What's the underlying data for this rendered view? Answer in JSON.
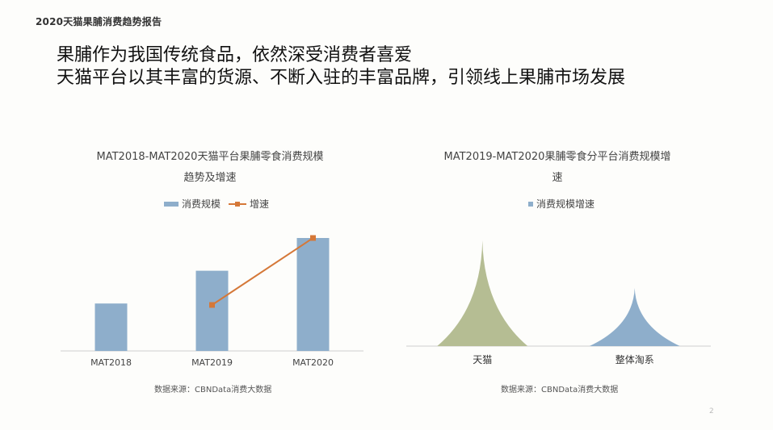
{
  "report_title": "2020天猫果脯消费趋势报告",
  "headline": {
    "line1": "果脯作为我国传统食品，依然深受消费者喜爱",
    "line2": "天猫平台以其丰富的货源、不断入驻的丰富品牌，引领线上果脯市场发展"
  },
  "colors": {
    "bar": "#8eaecb",
    "line": "#d57838",
    "tmall": "#b5bd93",
    "taoxi": "#8eaecb"
  },
  "chart_data": [
    {
      "type": "bar",
      "title_line1": "MAT2018-MAT2020天猫平台果脯零食消费规模",
      "title_line2": "趋势及增速",
      "categories": [
        "MAT2018",
        "MAT2019",
        "MAT2020"
      ],
      "series": [
        {
          "name": "消费规模",
          "type": "bar",
          "values": [
            42,
            71,
            100
          ]
        },
        {
          "name": "增速",
          "type": "line",
          "values": [
            null,
            42,
            100
          ]
        }
      ],
      "ylim": [
        0,
        100
      ],
      "grid": false,
      "legend": "top-center",
      "source": "数据来源：CBNData消费大数据"
    },
    {
      "type": "area",
      "title_line1": "MAT2019-MAT2020果脯零食分平台消费规模增",
      "title_line2": "速",
      "categories": [
        "天猫",
        "整体淘系"
      ],
      "series": [
        {
          "name": "消费规模增速",
          "values": [
            100,
            55
          ]
        }
      ],
      "ylim": [
        0,
        100
      ],
      "grid": false,
      "legend": "top-center",
      "source": "数据来源：CBNData消费大数据"
    }
  ],
  "page_number": "2"
}
